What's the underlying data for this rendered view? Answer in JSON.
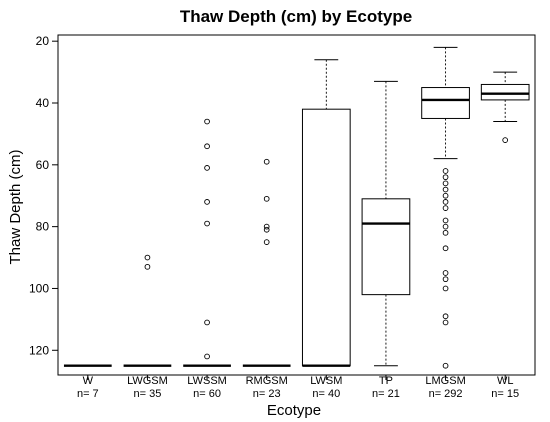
{
  "chart_data": {
    "type": "boxplot",
    "title": "Thaw Depth (cm) by Ecotype",
    "xlabel": "Ecotype",
    "ylabel": "Thaw Depth (cm)",
    "y_axis_inverted": true,
    "ylim": [
      128,
      18
    ],
    "yticks": [
      20,
      40,
      60,
      80,
      100,
      120
    ],
    "grid": false,
    "categories": [
      "W",
      "LWGSM",
      "LWSSM",
      "RMGSM",
      "LWSM",
      "TP",
      "LMGSM",
      "WL"
    ],
    "counts": [
      "n= 7",
      "n= 35",
      "n= 60",
      "n= 23",
      "n= 40",
      "n= 21",
      "n= 292",
      "n= 15"
    ],
    "boxes": [
      {
        "category": "W",
        "whislo": 125,
        "q1": 125,
        "med": 125,
        "q3": 125,
        "whishi": 125,
        "outliers": []
      },
      {
        "category": "LWGSM",
        "whislo": 125,
        "q1": 125,
        "med": 125,
        "q3": 125,
        "whishi": 125,
        "outliers": [
          90,
          93
        ]
      },
      {
        "category": "LWSSM",
        "whislo": 125,
        "q1": 125,
        "med": 125,
        "q3": 125,
        "whishi": 125,
        "outliers": [
          46,
          54,
          61,
          72,
          79,
          111,
          122
        ]
      },
      {
        "category": "RMGSM",
        "whislo": 125,
        "q1": 125,
        "med": 125,
        "q3": 125,
        "whishi": 125,
        "outliers": [
          59,
          71,
          80,
          81,
          85
        ]
      },
      {
        "category": "LWSM",
        "whislo": 26,
        "q1": 42,
        "med": 125,
        "q3": 125,
        "whishi": 125,
        "outliers": []
      },
      {
        "category": "TP",
        "whislo": 33,
        "q1": 71,
        "med": 79,
        "q3": 102,
        "whishi": 125,
        "outliers": []
      },
      {
        "category": "LMGSM",
        "whislo": 22,
        "q1": 35,
        "med": 39,
        "q3": 45,
        "whishi": 58,
        "outliers": [
          62,
          64,
          66,
          68,
          70,
          72,
          74,
          78,
          80,
          82,
          87,
          95,
          97,
          100,
          109,
          111,
          125
        ]
      },
      {
        "category": "WL",
        "whislo": 30,
        "q1": 34,
        "med": 37,
        "q3": 39,
        "whishi": 46,
        "outliers": [
          52
        ]
      }
    ]
  }
}
